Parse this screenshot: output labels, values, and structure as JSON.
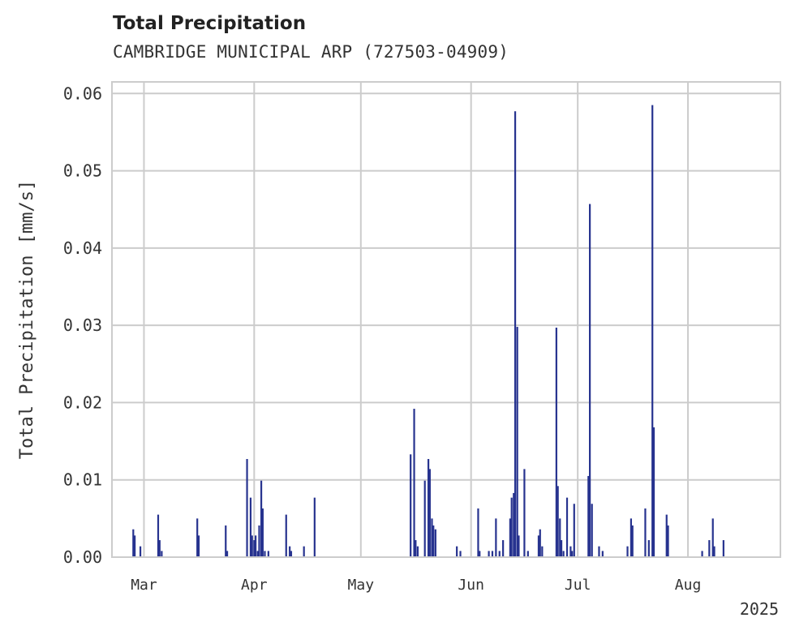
{
  "chart_data": {
    "type": "bar",
    "title": "Total Precipitation",
    "subtitle": "CAMBRIDGE MUNICIPAL ARP (727503-04909)",
    "ylabel": "Total Precipitation [mm/s]",
    "xlabel": "",
    "year_label": "2025",
    "ylim": [
      0,
      0.0615
    ],
    "xlim": [
      "2025-02-20",
      "2025-08-27"
    ],
    "y_ticks": [
      "0.00",
      "0.01",
      "0.02",
      "0.03",
      "0.04",
      "0.05",
      "0.06"
    ],
    "x_ticks": [
      {
        "label": "Mar",
        "date": "2025-03-01"
      },
      {
        "label": "Apr",
        "date": "2025-04-01"
      },
      {
        "label": "May",
        "date": "2025-05-01"
      },
      {
        "label": "Jun",
        "date": "2025-06-01"
      },
      {
        "label": "Jul",
        "date": "2025-07-01"
      },
      {
        "label": "Aug",
        "date": "2025-08-01"
      }
    ],
    "grid": true,
    "bar_color": "#27338f",
    "series": [
      {
        "points": [
          {
            "x": "2025-02-26",
            "y": 0.0036
          },
          {
            "x": "2025-02-26",
            "y": 0.0028
          },
          {
            "x": "2025-02-28",
            "y": 0.0014
          },
          {
            "x": "2025-03-05",
            "y": 0.0055
          },
          {
            "x": "2025-03-05",
            "y": 0.0022
          },
          {
            "x": "2025-03-06",
            "y": 0.0008
          },
          {
            "x": "2025-03-16",
            "y": 0.005
          },
          {
            "x": "2025-03-16",
            "y": 0.0028
          },
          {
            "x": "2025-03-24",
            "y": 0.0041
          },
          {
            "x": "2025-03-24",
            "y": 0.0008
          },
          {
            "x": "2025-03-30",
            "y": 0.0127
          },
          {
            "x": "2025-03-31",
            "y": 0.0077
          },
          {
            "x": "2025-03-31",
            "y": 0.0028
          },
          {
            "x": "2025-04-01",
            "y": 0.0022
          },
          {
            "x": "2025-04-01",
            "y": 0.0028
          },
          {
            "x": "2025-04-02",
            "y": 0.0008
          },
          {
            "x": "2025-04-02",
            "y": 0.0041
          },
          {
            "x": "2025-04-03",
            "y": 0.0099
          },
          {
            "x": "2025-04-03",
            "y": 0.0063
          },
          {
            "x": "2025-04-04",
            "y": 0.0008
          },
          {
            "x": "2025-04-05",
            "y": 0.0008
          },
          {
            "x": "2025-04-10",
            "y": 0.0055
          },
          {
            "x": "2025-04-11",
            "y": 0.0014
          },
          {
            "x": "2025-04-11",
            "y": 0.0008
          },
          {
            "x": "2025-04-15",
            "y": 0.0014
          },
          {
            "x": "2025-04-18",
            "y": 0.0077
          },
          {
            "x": "2025-05-15",
            "y": 0.0133
          },
          {
            "x": "2025-05-16",
            "y": 0.0192
          },
          {
            "x": "2025-05-16",
            "y": 0.0022
          },
          {
            "x": "2025-05-17",
            "y": 0.0014
          },
          {
            "x": "2025-05-19",
            "y": 0.0099
          },
          {
            "x": "2025-05-20",
            "y": 0.0127
          },
          {
            "x": "2025-05-20",
            "y": 0.0114
          },
          {
            "x": "2025-05-21",
            "y": 0.005
          },
          {
            "x": "2025-05-21",
            "y": 0.0041
          },
          {
            "x": "2025-05-22",
            "y": 0.0036
          },
          {
            "x": "2025-05-28",
            "y": 0.0014
          },
          {
            "x": "2025-05-29",
            "y": 0.0008
          },
          {
            "x": "2025-06-03",
            "y": 0.0063
          },
          {
            "x": "2025-06-03",
            "y": 0.0008
          },
          {
            "x": "2025-06-06",
            "y": 0.0008
          },
          {
            "x": "2025-06-07",
            "y": 0.0008
          },
          {
            "x": "2025-06-08",
            "y": 0.005
          },
          {
            "x": "2025-06-09",
            "y": 0.0008
          },
          {
            "x": "2025-06-10",
            "y": 0.0022
          },
          {
            "x": "2025-06-12",
            "y": 0.005
          },
          {
            "x": "2025-06-12",
            "y": 0.0077
          },
          {
            "x": "2025-06-13",
            "y": 0.0083
          },
          {
            "x": "2025-06-13",
            "y": 0.0577
          },
          {
            "x": "2025-06-14",
            "y": 0.0298
          },
          {
            "x": "2025-06-14",
            "y": 0.0028
          },
          {
            "x": "2025-06-16",
            "y": 0.0114
          },
          {
            "x": "2025-06-17",
            "y": 0.0008
          },
          {
            "x": "2025-06-20",
            "y": 0.0028
          },
          {
            "x": "2025-06-20",
            "y": 0.0036
          },
          {
            "x": "2025-06-21",
            "y": 0.0014
          },
          {
            "x": "2025-06-25",
            "y": 0.0297
          },
          {
            "x": "2025-06-25",
            "y": 0.0092
          },
          {
            "x": "2025-06-26",
            "y": 0.005
          },
          {
            "x": "2025-06-26",
            "y": 0.0022
          },
          {
            "x": "2025-06-27",
            "y": 0.0008
          },
          {
            "x": "2025-06-28",
            "y": 0.0077
          },
          {
            "x": "2025-06-29",
            "y": 0.0014
          },
          {
            "x": "2025-06-29",
            "y": 0.0008
          },
          {
            "x": "2025-06-30",
            "y": 0.0069
          },
          {
            "x": "2025-07-04",
            "y": 0.0105
          },
          {
            "x": "2025-07-04",
            "y": 0.0457
          },
          {
            "x": "2025-07-05",
            "y": 0.0069
          },
          {
            "x": "2025-07-07",
            "y": 0.0014
          },
          {
            "x": "2025-07-08",
            "y": 0.0008
          },
          {
            "x": "2025-07-15",
            "y": 0.0014
          },
          {
            "x": "2025-07-16",
            "y": 0.005
          },
          {
            "x": "2025-07-16",
            "y": 0.0041
          },
          {
            "x": "2025-07-20",
            "y": 0.0063
          },
          {
            "x": "2025-07-21",
            "y": 0.0022
          },
          {
            "x": "2025-07-22",
            "y": 0.0585
          },
          {
            "x": "2025-07-22",
            "y": 0.0168
          },
          {
            "x": "2025-07-26",
            "y": 0.0055
          },
          {
            "x": "2025-07-26",
            "y": 0.0041
          },
          {
            "x": "2025-08-05",
            "y": 0.0008
          },
          {
            "x": "2025-08-07",
            "y": 0.0022
          },
          {
            "x": "2025-08-08",
            "y": 0.005
          },
          {
            "x": "2025-08-08",
            "y": 0.0014
          },
          {
            "x": "2025-08-11",
            "y": 0.0022
          }
        ]
      }
    ]
  }
}
